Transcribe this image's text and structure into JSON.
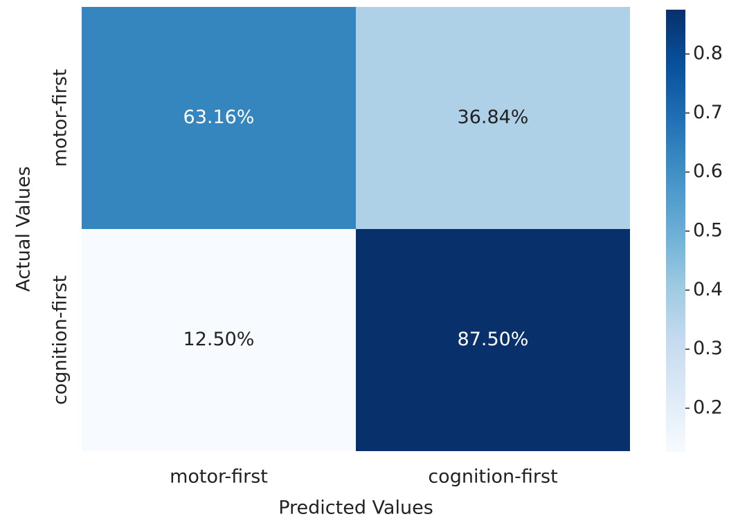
{
  "chart_data": {
    "type": "heatmap",
    "x_label": "Predicted Values",
    "y_label": "Actual Values",
    "x_categories": [
      "motor-first",
      "cognition-first"
    ],
    "y_categories": [
      "motor-first",
      "cognition-first"
    ],
    "values": [
      [
        0.6316,
        0.3684
      ],
      [
        0.125,
        0.875
      ]
    ],
    "value_labels": [
      [
        "63.16%",
        "36.84%"
      ],
      [
        "12.50%",
        "87.50%"
      ]
    ],
    "clim": [
      0.125,
      0.875
    ],
    "cticks": [
      0.2,
      0.3,
      0.4,
      0.5,
      0.6,
      0.7,
      0.8
    ],
    "colormap": [
      "#f7fbff",
      "#deebf7",
      "#c6dbef",
      "#9ecae1",
      "#6baed6",
      "#4292c6",
      "#2171b5",
      "#08519c",
      "#08306b"
    ]
  }
}
